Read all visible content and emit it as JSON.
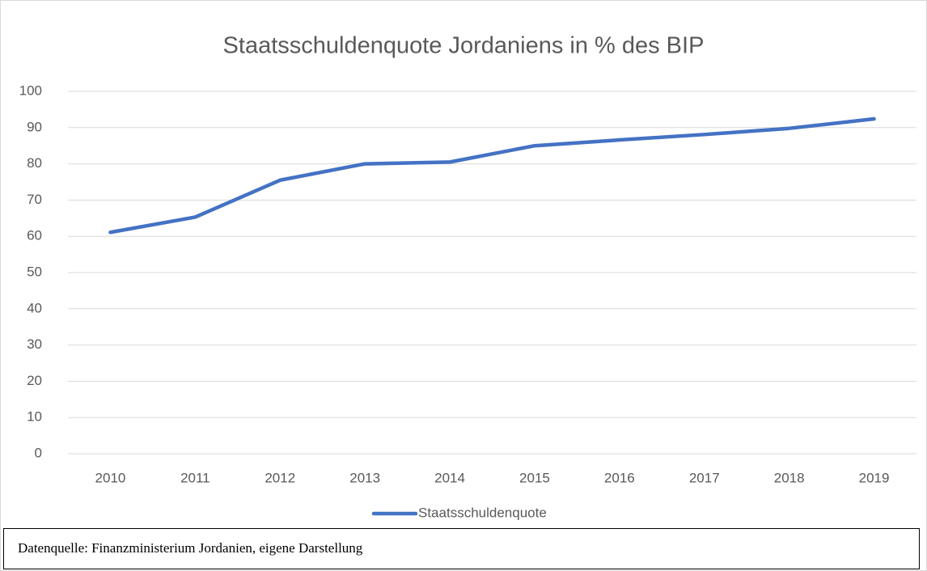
{
  "chart_data": {
    "type": "line",
    "title": "Staatsschuldenquote Jordaniens in % des BIP",
    "categories": [
      "2010",
      "2011",
      "2012",
      "2013",
      "2014",
      "2015",
      "2016",
      "2017",
      "2018",
      "2019"
    ],
    "series": [
      {
        "name": "Staatsschuldenquote",
        "color": "#4472c4",
        "values": [
          61.1,
          65.3,
          75.5,
          80.0,
          80.5,
          85.0,
          86.6,
          88.1,
          89.8,
          92.4
        ]
      }
    ],
    "ylim": [
      0,
      100
    ],
    "yticks": [
      0,
      10,
      20,
      30,
      40,
      50,
      60,
      70,
      80,
      90,
      100
    ],
    "grid": true,
    "legend": "bottom",
    "source": "Datenquelle: Finanzministerium Jordanien, eigene Darstellung"
  }
}
